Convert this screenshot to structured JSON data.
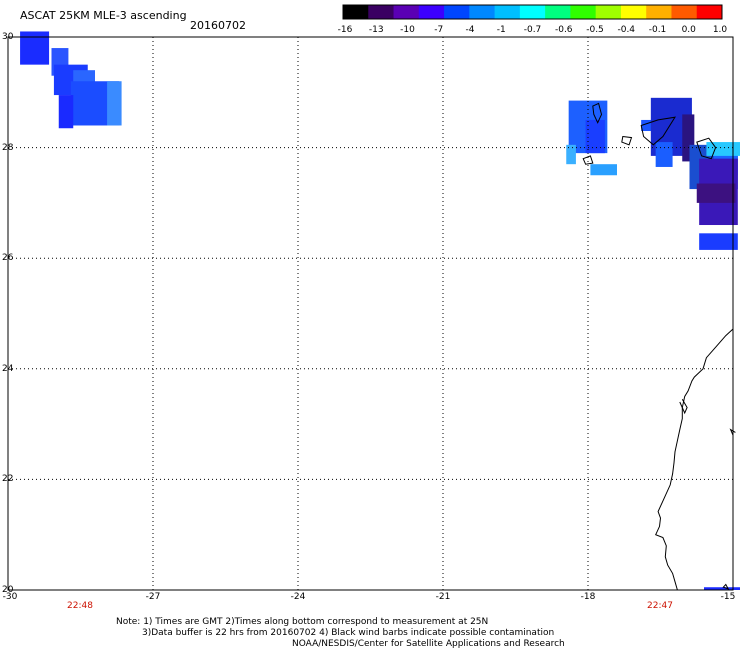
{
  "header": {
    "title": "ASCAT 25KM MLE-3 ascending",
    "date": "20160702"
  },
  "colorbar": {
    "labels": [
      "-16",
      "-13",
      "-10",
      "-7",
      "-4",
      "-1",
      "-0.7",
      "-0.6",
      "-0.5",
      "-0.4",
      "-0.1",
      "0.0",
      "1.0"
    ],
    "colors": [
      "#000000",
      "#3a0062",
      "#5a00b4",
      "#3c00ff",
      "#0046ff",
      "#0088ff",
      "#00bfff",
      "#00ffff",
      "#00ff80",
      "#30ff00",
      "#a0ff00",
      "#ffff00",
      "#ffb000",
      "#ff5a00",
      "#ff0000"
    ]
  },
  "axes": {
    "lat_labels": [
      "30",
      "28",
      "26",
      "24",
      "22",
      "20"
    ],
    "lon_labels": [
      "-30",
      "-27",
      "-24",
      "-21",
      "-18",
      "-15"
    ]
  },
  "pass_times": {
    "left": "22:48",
    "right": "22:47"
  },
  "notes": {
    "line1": "Note: 1) Times are GMT 2)Times along bottom correspond to measurement at 25N",
    "line2": "3)Data buffer is 22 hrs from 20160702 4) Black wind barbs indicate possible contamination",
    "line3": "NOAA/NESDIS/Center for Satellite Applications and Research"
  },
  "map_data": {
    "lon_range": [
      -30,
      -15
    ],
    "lat_range": [
      20,
      30
    ],
    "cells": [
      {
        "lon": -29.75,
        "lat": 29.5,
        "w": 0.6,
        "h": 0.6,
        "color": "#1a2cff"
      },
      {
        "lon": -29.1,
        "lat": 29.3,
        "w": 0.35,
        "h": 0.5,
        "color": "#2a55ff"
      },
      {
        "lon": -29.05,
        "lat": 28.95,
        "w": 0.7,
        "h": 0.55,
        "color": "#1a3cff"
      },
      {
        "lon": -28.65,
        "lat": 28.8,
        "w": 0.45,
        "h": 0.6,
        "color": "#2a66ff"
      },
      {
        "lon": -28.7,
        "lat": 28.4,
        "w": 1.0,
        "h": 0.8,
        "color": "#1b4dff"
      },
      {
        "lon": -28.95,
        "lat": 28.35,
        "w": 0.3,
        "h": 0.6,
        "color": "#1a2aff"
      },
      {
        "lon": -27.95,
        "lat": 28.4,
        "w": 0.3,
        "h": 0.8,
        "color": "#3a8bff"
      },
      {
        "lon": -18.4,
        "lat": 27.9,
        "w": 0.8,
        "h": 0.95,
        "color": "#1d60ff"
      },
      {
        "lon": -18.05,
        "lat": 27.9,
        "w": 0.4,
        "h": 0.6,
        "color": "#1a3eff"
      },
      {
        "lon": -18.45,
        "lat": 27.7,
        "w": 0.2,
        "h": 0.35,
        "color": "#3ab0ff"
      },
      {
        "lon": -17.95,
        "lat": 27.5,
        "w": 0.55,
        "h": 0.2,
        "color": "#2aa0ff"
      },
      {
        "lon": -16.9,
        "lat": 28.3,
        "w": 0.35,
        "h": 0.2,
        "color": "#1a55ff"
      },
      {
        "lon": -16.7,
        "lat": 27.85,
        "w": 0.85,
        "h": 1.05,
        "color": "#1a2bd0"
      },
      {
        "lon": -16.05,
        "lat": 27.75,
        "w": 0.25,
        "h": 0.85,
        "color": "#2a1480"
      },
      {
        "lon": -16.6,
        "lat": 27.65,
        "w": 0.35,
        "h": 0.45,
        "color": "#1a5eff"
      },
      {
        "lon": -15.9,
        "lat": 27.25,
        "w": 1.0,
        "h": 0.8,
        "color": "#1a4ed0"
      },
      {
        "lon": -15.4,
        "lat": 27.5,
        "w": 0.5,
        "h": 0.45,
        "color": "#1d62ff"
      },
      {
        "lon": -15.55,
        "lat": 27.85,
        "w": 0.75,
        "h": 0.25,
        "color": "#28c8ff"
      },
      {
        "lon": -15.7,
        "lat": 26.6,
        "w": 0.8,
        "h": 1.2,
        "color": "#3a18b8"
      },
      {
        "lon": -15.75,
        "lat": 27.0,
        "w": 0.8,
        "h": 0.35,
        "color": "#3c1180"
      },
      {
        "lon": -15.7,
        "lat": 26.15,
        "w": 0.8,
        "h": 0.3,
        "color": "#1a3cff"
      },
      {
        "lon": -15.6,
        "lat": 20.0,
        "w": 0.8,
        "h": 0.05,
        "color": "#1a2aff"
      }
    ],
    "coastline": [
      [
        [
          -15.0,
          24.72
        ],
        [
          -15.15,
          24.6
        ],
        [
          -15.35,
          24.4
        ],
        [
          -15.55,
          24.2
        ],
        [
          -15.62,
          24.0
        ],
        [
          -15.8,
          23.85
        ],
        [
          -15.85,
          23.78
        ],
        [
          -15.93,
          23.6
        ],
        [
          -16.0,
          23.5
        ],
        [
          -16.05,
          23.3
        ],
        [
          -16.05,
          23.1
        ],
        [
          -16.1,
          22.9
        ],
        [
          -16.15,
          22.7
        ],
        [
          -16.2,
          22.5
        ],
        [
          -16.22,
          22.3
        ],
        [
          -16.25,
          22.1
        ],
        [
          -16.3,
          21.9
        ],
        [
          -16.43,
          21.65
        ],
        [
          -16.55,
          21.42
        ],
        [
          -16.5,
          21.3
        ],
        [
          -16.52,
          21.15
        ],
        [
          -16.6,
          21.0
        ],
        [
          -16.45,
          20.95
        ],
        [
          -16.38,
          20.8
        ],
        [
          -16.4,
          20.6
        ],
        [
          -16.35,
          20.45
        ],
        [
          -16.25,
          20.3
        ],
        [
          -16.2,
          20.15
        ],
        [
          -16.15,
          20.0
        ]
      ],
      [
        [
          -16.1,
          23.4
        ],
        [
          -16.0,
          23.2
        ],
        [
          -15.95,
          23.3
        ],
        [
          -16.05,
          23.45
        ]
      ],
      [
        [
          -15.0,
          22.8
        ],
        [
          -15.05,
          22.9
        ],
        [
          -14.95,
          22.85
        ]
      ]
    ],
    "islands": [
      [
        [
          -17.9,
          28.75
        ],
        [
          -17.78,
          28.8
        ],
        [
          -17.72,
          28.6
        ],
        [
          -17.8,
          28.45
        ],
        [
          -17.88,
          28.6
        ]
      ],
      [
        [
          -17.28,
          28.2
        ],
        [
          -17.1,
          28.18
        ],
        [
          -17.15,
          28.05
        ],
        [
          -17.3,
          28.1
        ]
      ],
      [
        [
          -16.9,
          28.4
        ],
        [
          -16.55,
          28.5
        ],
        [
          -16.2,
          28.55
        ],
        [
          -16.45,
          28.2
        ],
        [
          -16.65,
          28.05
        ],
        [
          -16.85,
          28.2
        ]
      ],
      [
        [
          -15.75,
          28.1
        ],
        [
          -15.5,
          28.17
        ],
        [
          -15.36,
          28.0
        ],
        [
          -15.45,
          27.8
        ],
        [
          -15.65,
          27.85
        ]
      ],
      [
        [
          -18.1,
          27.8
        ],
        [
          -17.95,
          27.85
        ],
        [
          -17.9,
          27.72
        ],
        [
          -18.05,
          27.7
        ]
      ],
      [
        [
          -15.2,
          20.05
        ],
        [
          -15.15,
          20.1
        ],
        [
          -15.1,
          20.02
        ]
      ]
    ]
  }
}
